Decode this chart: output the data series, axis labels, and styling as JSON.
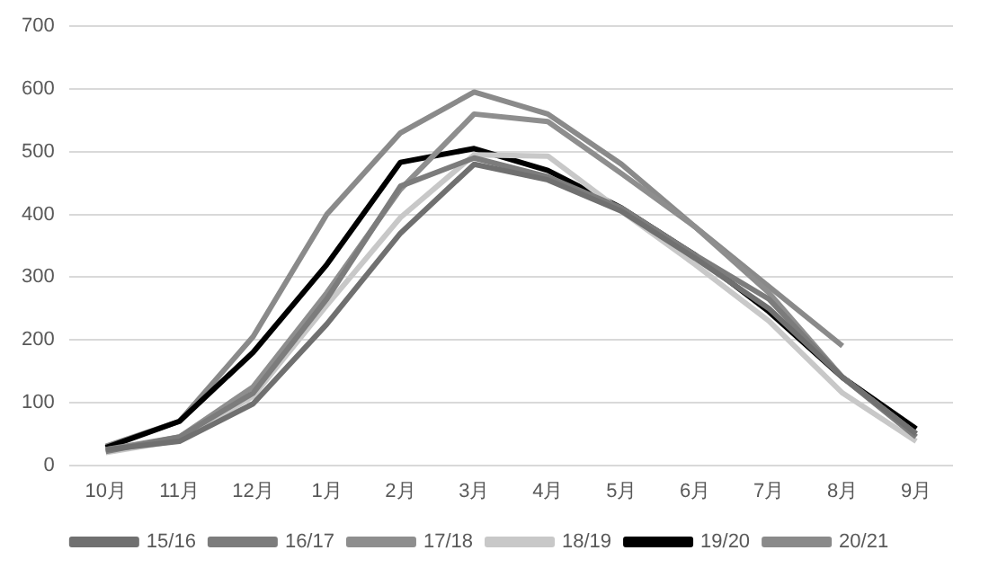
{
  "chart_data": {
    "type": "line",
    "categories": [
      "10月",
      "11月",
      "12月",
      "1月",
      "2月",
      "3月",
      "4月",
      "5月",
      "6月",
      "7月",
      "8月",
      "9月"
    ],
    "series": [
      {
        "name": "15/16",
        "color": "#707070",
        "values": [
          25,
          38,
          98,
          225,
          370,
          480,
          455,
          405,
          330,
          250,
          140,
          50
        ]
      },
      {
        "name": "16/17",
        "color": "#7c7c7c",
        "values": [
          22,
          45,
          115,
          265,
          445,
          490,
          460,
          410,
          335,
          265,
          140,
          45
        ]
      },
      {
        "name": "17/18",
        "color": "#8e8e8e",
        "values": [
          25,
          45,
          125,
          275,
          440,
          560,
          548,
          465,
          380,
          275,
          140,
          50
        ]
      },
      {
        "name": "18/19",
        "color": "#c8c8c8",
        "values": [
          20,
          40,
          110,
          255,
          395,
          495,
          493,
          405,
          320,
          230,
          115,
          38
        ]
      },
      {
        "name": "19/20",
        "color": "#000000",
        "values": [
          28,
          70,
          180,
          320,
          483,
          505,
          470,
          410,
          335,
          245,
          140,
          58
        ]
      },
      {
        "name": "20/21",
        "color": "#8a8a8a",
        "values": [
          30,
          70,
          205,
          400,
          530,
          595,
          560,
          480,
          380,
          285,
          190,
          null
        ]
      }
    ],
    "ylim": [
      0,
      700
    ],
    "yticks": [
      0,
      100,
      200,
      300,
      400,
      500,
      600,
      700
    ],
    "grid": "y",
    "legend": "bottom",
    "marker": "none",
    "line_style": "solid"
  }
}
